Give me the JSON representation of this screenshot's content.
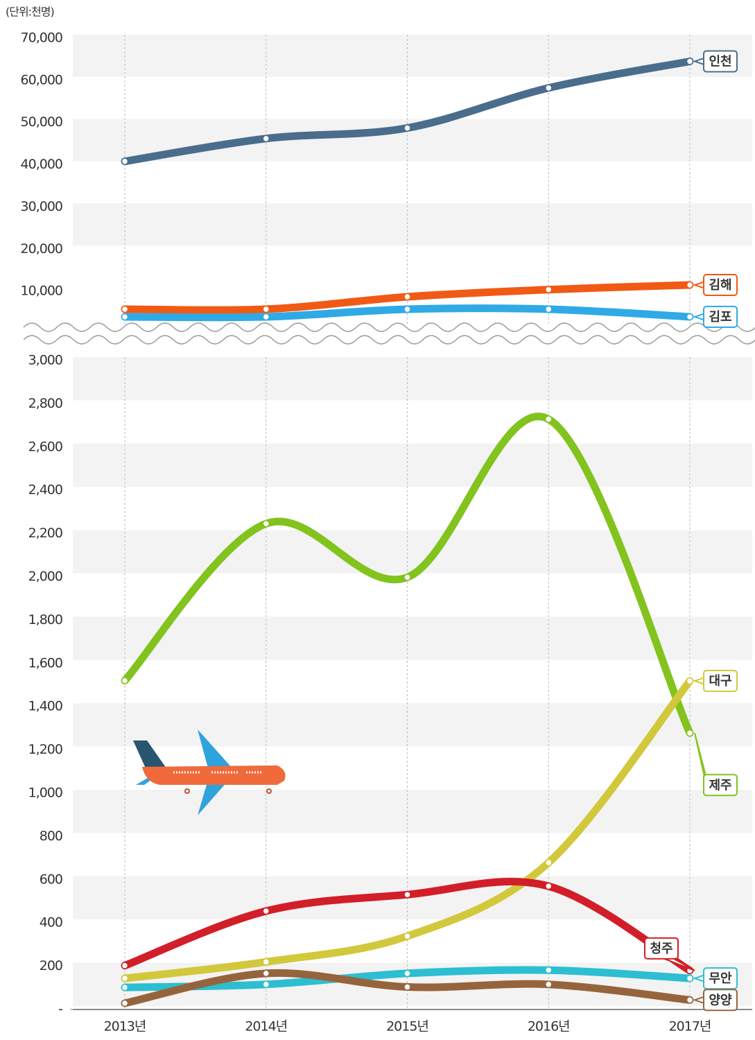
{
  "chart_data": [
    {
      "type": "line",
      "y_label": "(단위:천명)",
      "ylim": [
        0,
        70000
      ],
      "yticks": [
        {
          "value": 10000,
          "label": "10,000"
        },
        {
          "value": 20000,
          "label": "20,000"
        },
        {
          "value": 30000,
          "label": "30,000"
        },
        {
          "value": 40000,
          "label": "40,000"
        },
        {
          "value": 50000,
          "label": "50,000"
        },
        {
          "value": 60000,
          "label": "60,000"
        },
        {
          "value": 70000,
          "label": "70,000"
        }
      ],
      "series": [
        {
          "name": "인천",
          "color": "#4a6d8c",
          "values": [
            40800,
            46200,
            48700,
            58200,
            64500
          ]
        },
        {
          "name": "김해",
          "color": "#f05a14",
          "values": [
            5760,
            5760,
            8700,
            10400,
            11500
          ]
        },
        {
          "name": "김포",
          "color": "#2eaae6",
          "values": [
            3950,
            3950,
            5760,
            5760,
            3950
          ]
        }
      ]
    },
    {
      "type": "line",
      "categories": [
        "2013년",
        "2014년",
        "2015년",
        "2016년",
        "2017년"
      ],
      "ylim": [
        0,
        3000
      ],
      "yticks": [
        {
          "value": 0,
          "label": "-"
        },
        200,
        400,
        600,
        800,
        {
          "value": 1000,
          "label": "1,000"
        },
        {
          "value": 1200,
          "label": "1,200"
        },
        {
          "value": 1400,
          "label": "1,400"
        },
        {
          "value": 1600,
          "label": "1,600"
        },
        {
          "value": 1800,
          "label": "1,800"
        },
        {
          "value": 2000,
          "label": "2,000"
        },
        {
          "value": 2200,
          "label": "2,200"
        },
        {
          "value": 2400,
          "label": "2,400"
        },
        {
          "value": 2600,
          "label": "2,600"
        },
        {
          "value": 2800,
          "label": "2,800"
        },
        {
          "value": 3000,
          "label": "3,000"
        }
      ],
      "series": [
        {
          "name": "제주",
          "color": "#82c31e",
          "values": [
            1520,
            2246,
            1998,
            2729,
            1278
          ]
        },
        {
          "name": "대구",
          "color": "#d2c83c",
          "values": [
            144,
            220,
            339,
            679,
            1519
          ]
        },
        {
          "name": "청주",
          "color": "#d21e28",
          "values": [
            203,
            455,
            531,
            570,
            180
          ]
        },
        {
          "name": "무안",
          "color": "#2dbed2",
          "values": [
            102,
            116,
            167,
            182,
            144
          ]
        },
        {
          "name": "양양",
          "color": "#96643c",
          "values": [
            29,
            167,
            104,
            116,
            44
          ]
        }
      ]
    }
  ]
}
